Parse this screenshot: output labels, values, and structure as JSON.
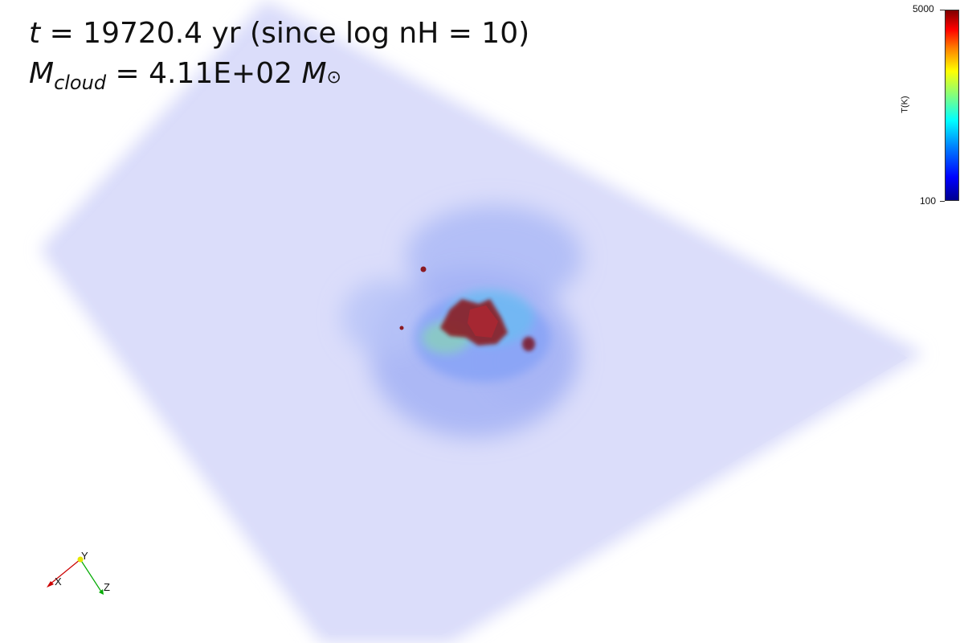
{
  "annotation": {
    "time_var": "t",
    "time_rest": "= 19720.4 yr (since log nH = 10)",
    "mass_var": "M",
    "mass_sub": "cloud",
    "mass_rest": "= 4.11E+02",
    "mass_unit": "M",
    "sun_symbol": "⊙"
  },
  "colorbar": {
    "title": "T(K)",
    "max_label": "5000",
    "min_label": "100",
    "colormap": [
      "#00008f",
      "#0000ff",
      "#0080ff",
      "#00ffff",
      "#80ff80",
      "#ffff00",
      "#ff8000",
      "#ff0000",
      "#7f0000"
    ]
  },
  "axes_triad": {
    "x_label": "X",
    "y_label": "Y",
    "z_label": "Z",
    "x_color": "#cc0000",
    "y_color": "#e6e600",
    "z_color": "#00aa00"
  },
  "scene_colors": {
    "box": "#d9dbfa",
    "hot_core": "#8b1a22"
  }
}
